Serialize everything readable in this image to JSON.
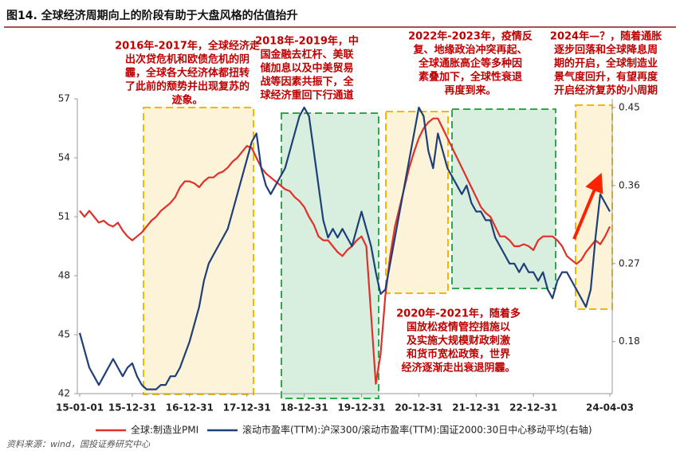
{
  "title": "图14. 全球经济周期向上的阶段有助于大盘风格的估值抬升",
  "source": "资料来源：wind，国投证券研究中心",
  "chart_data": {
    "type": "line",
    "categories": [
      "15-01-01",
      null,
      null,
      null,
      null,
      null,
      null,
      null,
      null,
      null,
      null,
      "15-12-31",
      null,
      null,
      null,
      null,
      null,
      null,
      null,
      null,
      null,
      null,
      null,
      "16-12-31",
      null,
      null,
      null,
      null,
      null,
      null,
      null,
      null,
      null,
      null,
      null,
      "17-12-31",
      null,
      null,
      null,
      null,
      null,
      null,
      null,
      null,
      null,
      null,
      null,
      "18-12-31",
      null,
      null,
      null,
      null,
      null,
      null,
      null,
      null,
      null,
      null,
      null,
      "19-12-31",
      null,
      null,
      null,
      null,
      null,
      null,
      null,
      null,
      null,
      null,
      null,
      "20-12-31",
      null,
      null,
      null,
      null,
      null,
      null,
      null,
      null,
      null,
      null,
      null,
      "21-12-31",
      null,
      null,
      null,
      null,
      null,
      null,
      null,
      null,
      null,
      null,
      null,
      "22-12-31",
      null,
      null,
      null,
      null,
      null,
      null,
      null,
      null,
      null,
      null,
      null,
      null,
      null,
      null,
      null,
      "24-04-03"
    ],
    "series": [
      {
        "name": "全球:制造业PMI",
        "color": "#e0302a",
        "values": [
          51.3,
          51.0,
          51.3,
          51.0,
          50.7,
          50.8,
          50.6,
          50.5,
          50.7,
          50.3,
          50.0,
          49.8,
          50.0,
          50.2,
          50.5,
          50.8,
          51.0,
          51.3,
          51.5,
          51.7,
          52.0,
          52.5,
          52.8,
          52.8,
          52.7,
          52.5,
          52.8,
          53.0,
          53.0,
          53.2,
          53.3,
          53.5,
          53.8,
          54.0,
          54.3,
          54.6,
          54.5,
          54.0,
          53.5,
          53.2,
          53.0,
          52.8,
          52.6,
          52.4,
          52.3,
          52.0,
          51.8,
          51.5,
          51.0,
          50.6,
          50.0,
          49.8,
          49.8,
          49.5,
          49.2,
          49.0,
          49.3,
          49.5,
          49.8,
          50.0,
          49.5,
          46.0,
          42.5,
          44.0,
          47.0,
          49.0,
          50.5,
          51.5,
          52.5,
          53.5,
          54.3,
          55.0,
          55.5,
          55.8,
          56.0,
          56.0,
          55.5,
          55.0,
          54.5,
          54.0,
          53.5,
          53.0,
          52.5,
          52.0,
          51.5,
          51.2,
          51.0,
          50.5,
          50.0,
          50.0,
          49.8,
          49.5,
          49.5,
          49.6,
          49.5,
          49.3,
          49.8,
          50.0,
          50.0,
          50.0,
          49.8,
          49.5,
          49.0,
          48.8,
          48.6,
          48.8,
          49.2,
          49.5,
          49.8,
          49.6,
          50.0,
          50.5
        ]
      },
      {
        "name": "滚动市盈率(TTM):沪深300/滚动市盈率(TTM):国证2000:30日中心移动平均(右轴)",
        "color": "#1f3f78",
        "axis": "y2",
        "values": [
          0.19,
          0.17,
          0.15,
          0.14,
          0.13,
          0.14,
          0.15,
          0.16,
          0.15,
          0.14,
          0.15,
          0.155,
          0.14,
          0.13,
          0.125,
          0.125,
          0.125,
          0.13,
          0.13,
          0.14,
          0.14,
          0.15,
          0.165,
          0.18,
          0.2,
          0.22,
          0.25,
          0.27,
          0.28,
          0.29,
          0.3,
          0.31,
          0.33,
          0.35,
          0.37,
          0.39,
          0.41,
          0.42,
          0.38,
          0.36,
          0.35,
          0.36,
          0.37,
          0.38,
          0.4,
          0.42,
          0.44,
          0.45,
          0.44,
          0.4,
          0.36,
          0.32,
          0.3,
          0.31,
          0.3,
          0.31,
          0.3,
          0.29,
          0.31,
          0.33,
          0.31,
          0.29,
          0.26,
          0.235,
          0.24,
          0.27,
          0.3,
          0.33,
          0.36,
          0.39,
          0.42,
          0.45,
          0.44,
          0.4,
          0.38,
          0.42,
          0.4,
          0.38,
          0.37,
          0.36,
          0.35,
          0.36,
          0.34,
          0.33,
          0.33,
          0.32,
          0.32,
          0.3,
          0.29,
          0.28,
          0.27,
          0.27,
          0.26,
          0.27,
          0.26,
          0.26,
          0.25,
          0.26,
          0.24,
          0.23,
          0.25,
          0.26,
          0.26,
          0.25,
          0.24,
          0.23,
          0.22,
          0.24,
          0.3,
          0.35,
          0.34,
          0.33
        ]
      }
    ],
    "ylim": [
      42,
      57
    ],
    "yticks": [
      42,
      45,
      48,
      51,
      54,
      57
    ],
    "y2lim": [
      0.12,
      0.46
    ],
    "y2ticks": [
      0.18,
      0.27,
      0.36,
      0.45
    ],
    "annotations": [
      [
        "2016年-2017年，全球经济走",
        "出次贷危机和欧债危机的阴",
        "霾，全球各大经济体都扭转",
        "了此前的颓势并出现复苏的",
        "迹象。"
      ],
      [
        "2018年-2019年，中",
        "国金融去杠杆、美联",
        "储加息以及中美贸易",
        "战等因素共振下，全",
        "球经济重回下行通道"
      ],
      [
        "2022年-2023年，疫情反",
        "复、地缘政治冲突再起、",
        "全球通胀高企等多种因",
        "素叠加下，全球性衰退",
        "再度到来。"
      ],
      [
        "2024年—？，随着通胀",
        "逐步回落和全球降息周",
        "期的开启，全球制造业",
        "景气度回升，有望再度",
        "开启经济复苏的小周期"
      ],
      [
        "2020年-2021年，随着多",
        "国放松疫情管控措施以",
        "及实施大规模财政刺激",
        "和货币宽松政策，世界",
        "经济逐渐走出衰退阴霾。"
      ]
    ]
  }
}
